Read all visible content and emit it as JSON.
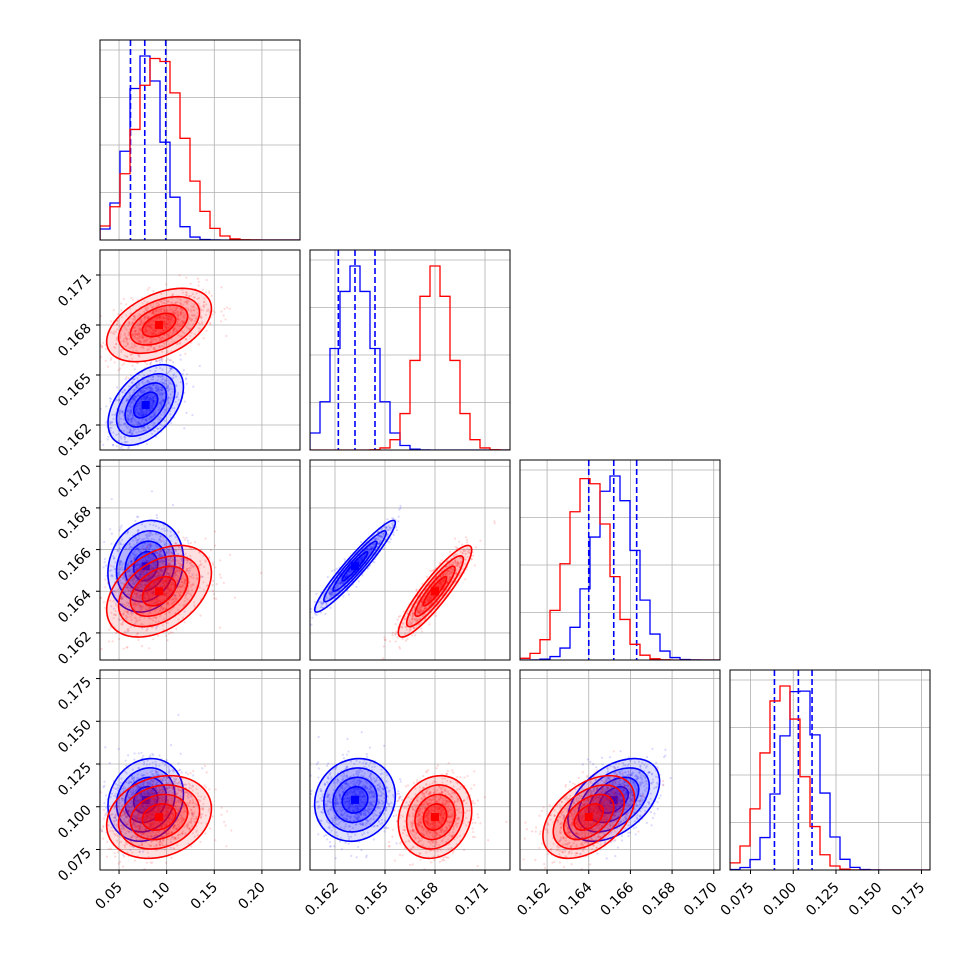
{
  "chart_data": {
    "type": "corner",
    "grid": true,
    "series": [
      {
        "color": "#0000ff",
        "quantiles": [
          [
            0.062,
            0.077,
            0.099
          ],
          [
            0.1622,
            0.1632,
            0.1644
          ],
          [
            0.164,
            0.1652,
            0.1663
          ],
          [
            0.089,
            0.103,
            0.111
          ]
        ],
        "means": [
          0.078,
          0.1632,
          0.1652,
          0.104
        ],
        "sds": [
          0.018,
          0.0011,
          0.001,
          0.011
        ],
        "corr": [
          [
            1,
            0.45,
            0.15,
            0.15
          ],
          [
            0.45,
            1,
            0.95,
            0.1
          ],
          [
            0.15,
            0.95,
            1,
            0.45
          ],
          [
            0.15,
            0.1,
            0.45,
            1
          ]
        ]
      },
      {
        "color": "#ff0000",
        "quantiles": [],
        "means": [
          0.092,
          0.168,
          0.164,
          0.094
        ],
        "sds": [
          0.025,
          0.001,
          0.001,
          0.011
        ],
        "corr": [
          [
            1,
            0.45,
            0.4,
            0.2
          ],
          [
            0.45,
            1,
            0.9,
            0.15
          ],
          [
            0.4,
            0.9,
            1,
            0.45
          ],
          [
            0.2,
            0.15,
            0.45,
            1
          ]
        ]
      }
    ],
    "params": [
      {
        "range": [
          0.03,
          0.24
        ],
        "ticks": [
          0.05,
          0.1,
          0.15,
          0.2
        ],
        "labels": [
          "0.05",
          "0.10",
          "0.15",
          "0.20"
        ]
      },
      {
        "range": [
          0.1605,
          0.1725
        ],
        "ticks": [
          0.162,
          0.165,
          0.168,
          0.171
        ],
        "labels": [
          "0.162",
          "0.165",
          "0.168",
          "0.171"
        ]
      },
      {
        "range": [
          0.1607,
          0.1703
        ],
        "ticks": [
          0.162,
          0.164,
          0.166,
          0.168,
          0.17
        ],
        "labels": [
          "0.162",
          "0.164",
          "0.166",
          "0.168",
          "0.170"
        ]
      },
      {
        "range": [
          0.063,
          0.18
        ],
        "ticks": [
          0.075,
          0.1,
          0.125,
          0.15,
          0.175
        ],
        "labels": [
          "0.075",
          "0.100",
          "0.125",
          "0.150",
          "0.175"
        ]
      }
    ]
  }
}
